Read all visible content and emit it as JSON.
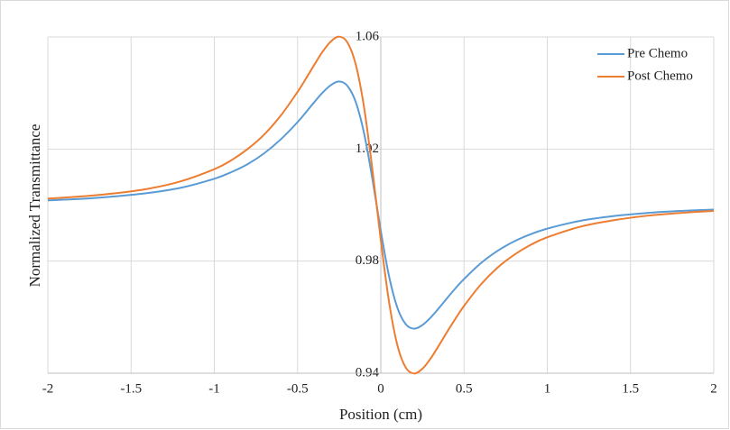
{
  "chart_data": {
    "type": "line",
    "x_label": "Position (cm)",
    "y_label": "Normalized Transmittance",
    "x": [
      -2,
      -1.8,
      -1.6,
      -1.4,
      -1.2,
      -1,
      -0.9,
      -0.8,
      -0.7,
      -0.6,
      -0.5,
      -0.45,
      -0.4,
      -0.35,
      -0.3,
      -0.25,
      -0.2,
      -0.15,
      -0.1,
      -0.05,
      0,
      0.05,
      0.1,
      0.15,
      0.2,
      0.25,
      0.3,
      0.35,
      0.4,
      0.45,
      0.5,
      0.6,
      0.7,
      0.8,
      0.9,
      1,
      1.2,
      1.4,
      1.6,
      1.8,
      2
    ],
    "series": [
      {
        "name": "Pre Chemo",
        "color": "#5b9bd5",
        "values": [
          1.0017,
          1.0022,
          1.0031,
          1.0043,
          1.0062,
          1.0094,
          1.0117,
          1.0146,
          1.0185,
          1.0235,
          1.0296,
          1.0331,
          1.0367,
          1.0401,
          1.0428,
          1.0441,
          1.0425,
          1.0367,
          1.0255,
          1.0092,
          0.9908,
          0.9745,
          0.9633,
          0.9575,
          0.9559,
          0.9572,
          0.9599,
          0.9633,
          0.9669,
          0.9704,
          0.9736,
          0.9792,
          0.9836,
          0.987,
          0.9896,
          0.9916,
          0.9944,
          0.9961,
          0.9972,
          0.9979,
          0.9984
        ]
      },
      {
        "name": "Post Chemo",
        "color": "#ed7d31",
        "values": [
          1.0023,
          1.0031,
          1.0042,
          1.0058,
          1.0085,
          1.0128,
          1.0159,
          1.02,
          1.0252,
          1.032,
          1.0404,
          1.0451,
          1.05,
          1.0547,
          1.0584,
          1.0601,
          1.058,
          1.0501,
          1.0347,
          1.0125,
          0.9875,
          0.9653,
          0.9499,
          0.942,
          0.9399,
          0.9416,
          0.9453,
          0.95,
          0.9549,
          0.9596,
          0.964,
          0.9716,
          0.9776,
          0.9822,
          0.9858,
          0.9885,
          0.9923,
          0.9946,
          0.9962,
          0.9972,
          0.9979
        ]
      }
    ],
    "xlim": [
      -2,
      2
    ],
    "xticks": [
      -2,
      -1.5,
      -1,
      -0.5,
      0,
      0.5,
      1,
      1.5,
      2
    ],
    "ylim": [
      0.94,
      1.06
    ],
    "yticks": [
      0.94,
      0.98,
      1.02,
      1.06
    ],
    "grid": true,
    "legend": "upper-right"
  }
}
